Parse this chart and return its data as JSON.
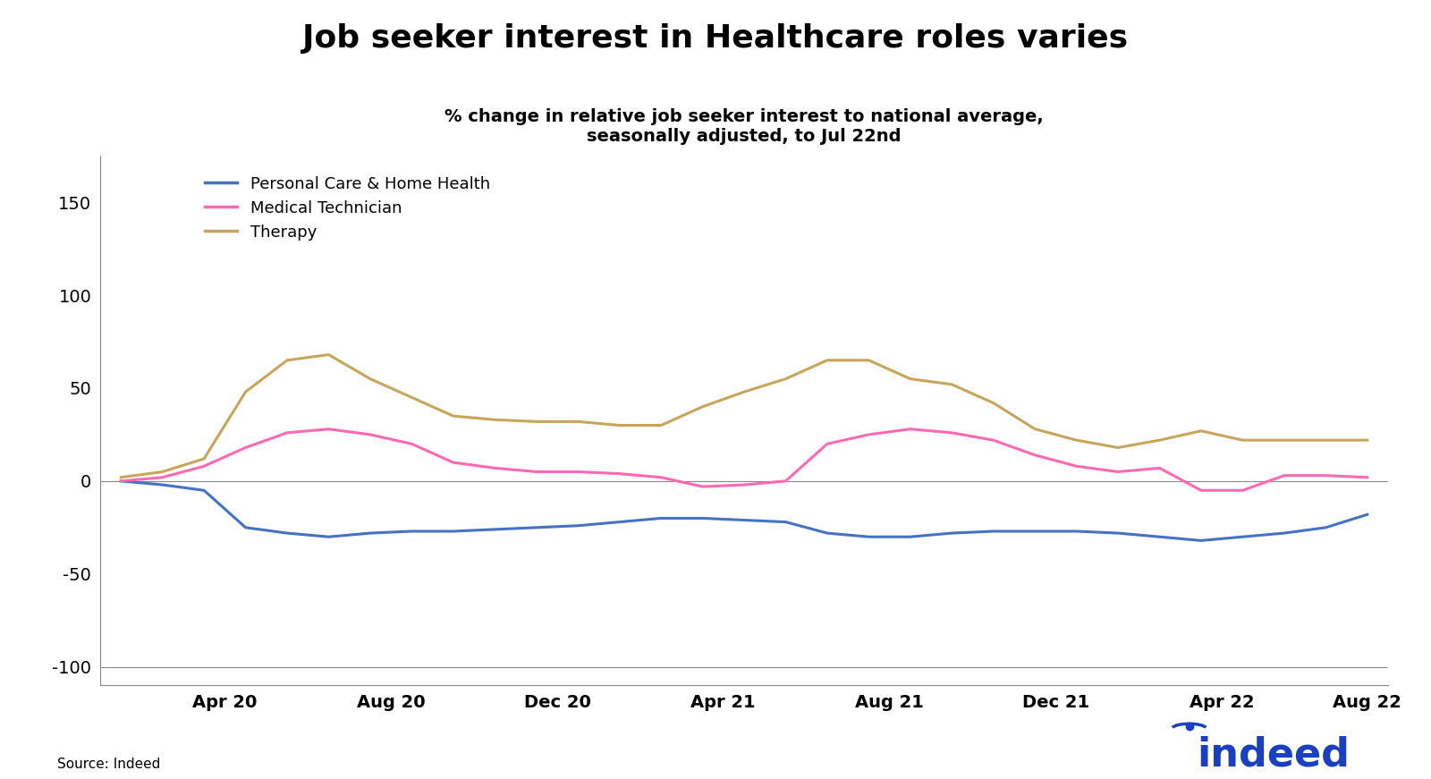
{
  "title": "Job seeker interest in Healthcare roles varies",
  "subtitle": "% change in relative job seeker interest to national average,\nseasonally adjusted, to Jul 22nd",
  "source": "Source: Indeed",
  "ylim": [
    -110,
    175
  ],
  "yticks": [
    -100,
    -50,
    0,
    50,
    100,
    150
  ],
  "background_color": "#ffffff",
  "lines": {
    "personal_care": {
      "label": "Personal Care & Home Health",
      "color": "#4472C4",
      "x": [
        0,
        1,
        2,
        3,
        4,
        5,
        6,
        7,
        8,
        9,
        10,
        11,
        12,
        13,
        14,
        15,
        16,
        17,
        18,
        19,
        20,
        21,
        22,
        23,
        24,
        25,
        26,
        27,
        28,
        29,
        30
      ],
      "y": [
        0,
        -2,
        -5,
        -25,
        -28,
        -30,
        -28,
        -27,
        -27,
        -26,
        -25,
        -24,
        -22,
        -20,
        -20,
        -21,
        -22,
        -28,
        -30,
        -30,
        -28,
        -27,
        -27,
        -27,
        -28,
        -30,
        -32,
        -30,
        -28,
        -25,
        -18
      ]
    },
    "medical_tech": {
      "label": "Medical Technician",
      "color": "#FF69B4",
      "x": [
        0,
        1,
        2,
        3,
        4,
        5,
        6,
        7,
        8,
        9,
        10,
        11,
        12,
        13,
        14,
        15,
        16,
        17,
        18,
        19,
        20,
        21,
        22,
        23,
        24,
        25,
        26,
        27,
        28,
        29,
        30
      ],
      "y": [
        0,
        2,
        8,
        18,
        26,
        28,
        25,
        20,
        10,
        7,
        5,
        5,
        4,
        2,
        -3,
        -2,
        0,
        20,
        25,
        28,
        26,
        22,
        14,
        8,
        5,
        7,
        -5,
        -5,
        3,
        3,
        2
      ]
    },
    "therapy": {
      "label": "Therapy",
      "color": "#C8A55A",
      "x": [
        0,
        1,
        2,
        3,
        4,
        5,
        6,
        7,
        8,
        9,
        10,
        11,
        12,
        13,
        14,
        15,
        16,
        17,
        18,
        19,
        20,
        21,
        22,
        23,
        24,
        25,
        26,
        27,
        28,
        29,
        30
      ],
      "y": [
        2,
        5,
        12,
        48,
        65,
        68,
        55,
        45,
        35,
        33,
        32,
        32,
        30,
        30,
        40,
        48,
        55,
        65,
        65,
        55,
        52,
        42,
        28,
        22,
        18,
        22,
        27,
        22,
        22,
        22,
        22
      ]
    }
  },
  "xtick_labels": [
    "Apr 20",
    "Aug 20",
    "Dec 20",
    "Apr 21",
    "Aug 21",
    "Dec 21",
    "Apr 22",
    "Aug 22"
  ],
  "xtick_positions": [
    2.5,
    6.5,
    10.5,
    14.5,
    18.5,
    22.5,
    26.5,
    30
  ],
  "indeed_color": "#1A3FBF",
  "indeed_dot_color": "#1A3FBF"
}
